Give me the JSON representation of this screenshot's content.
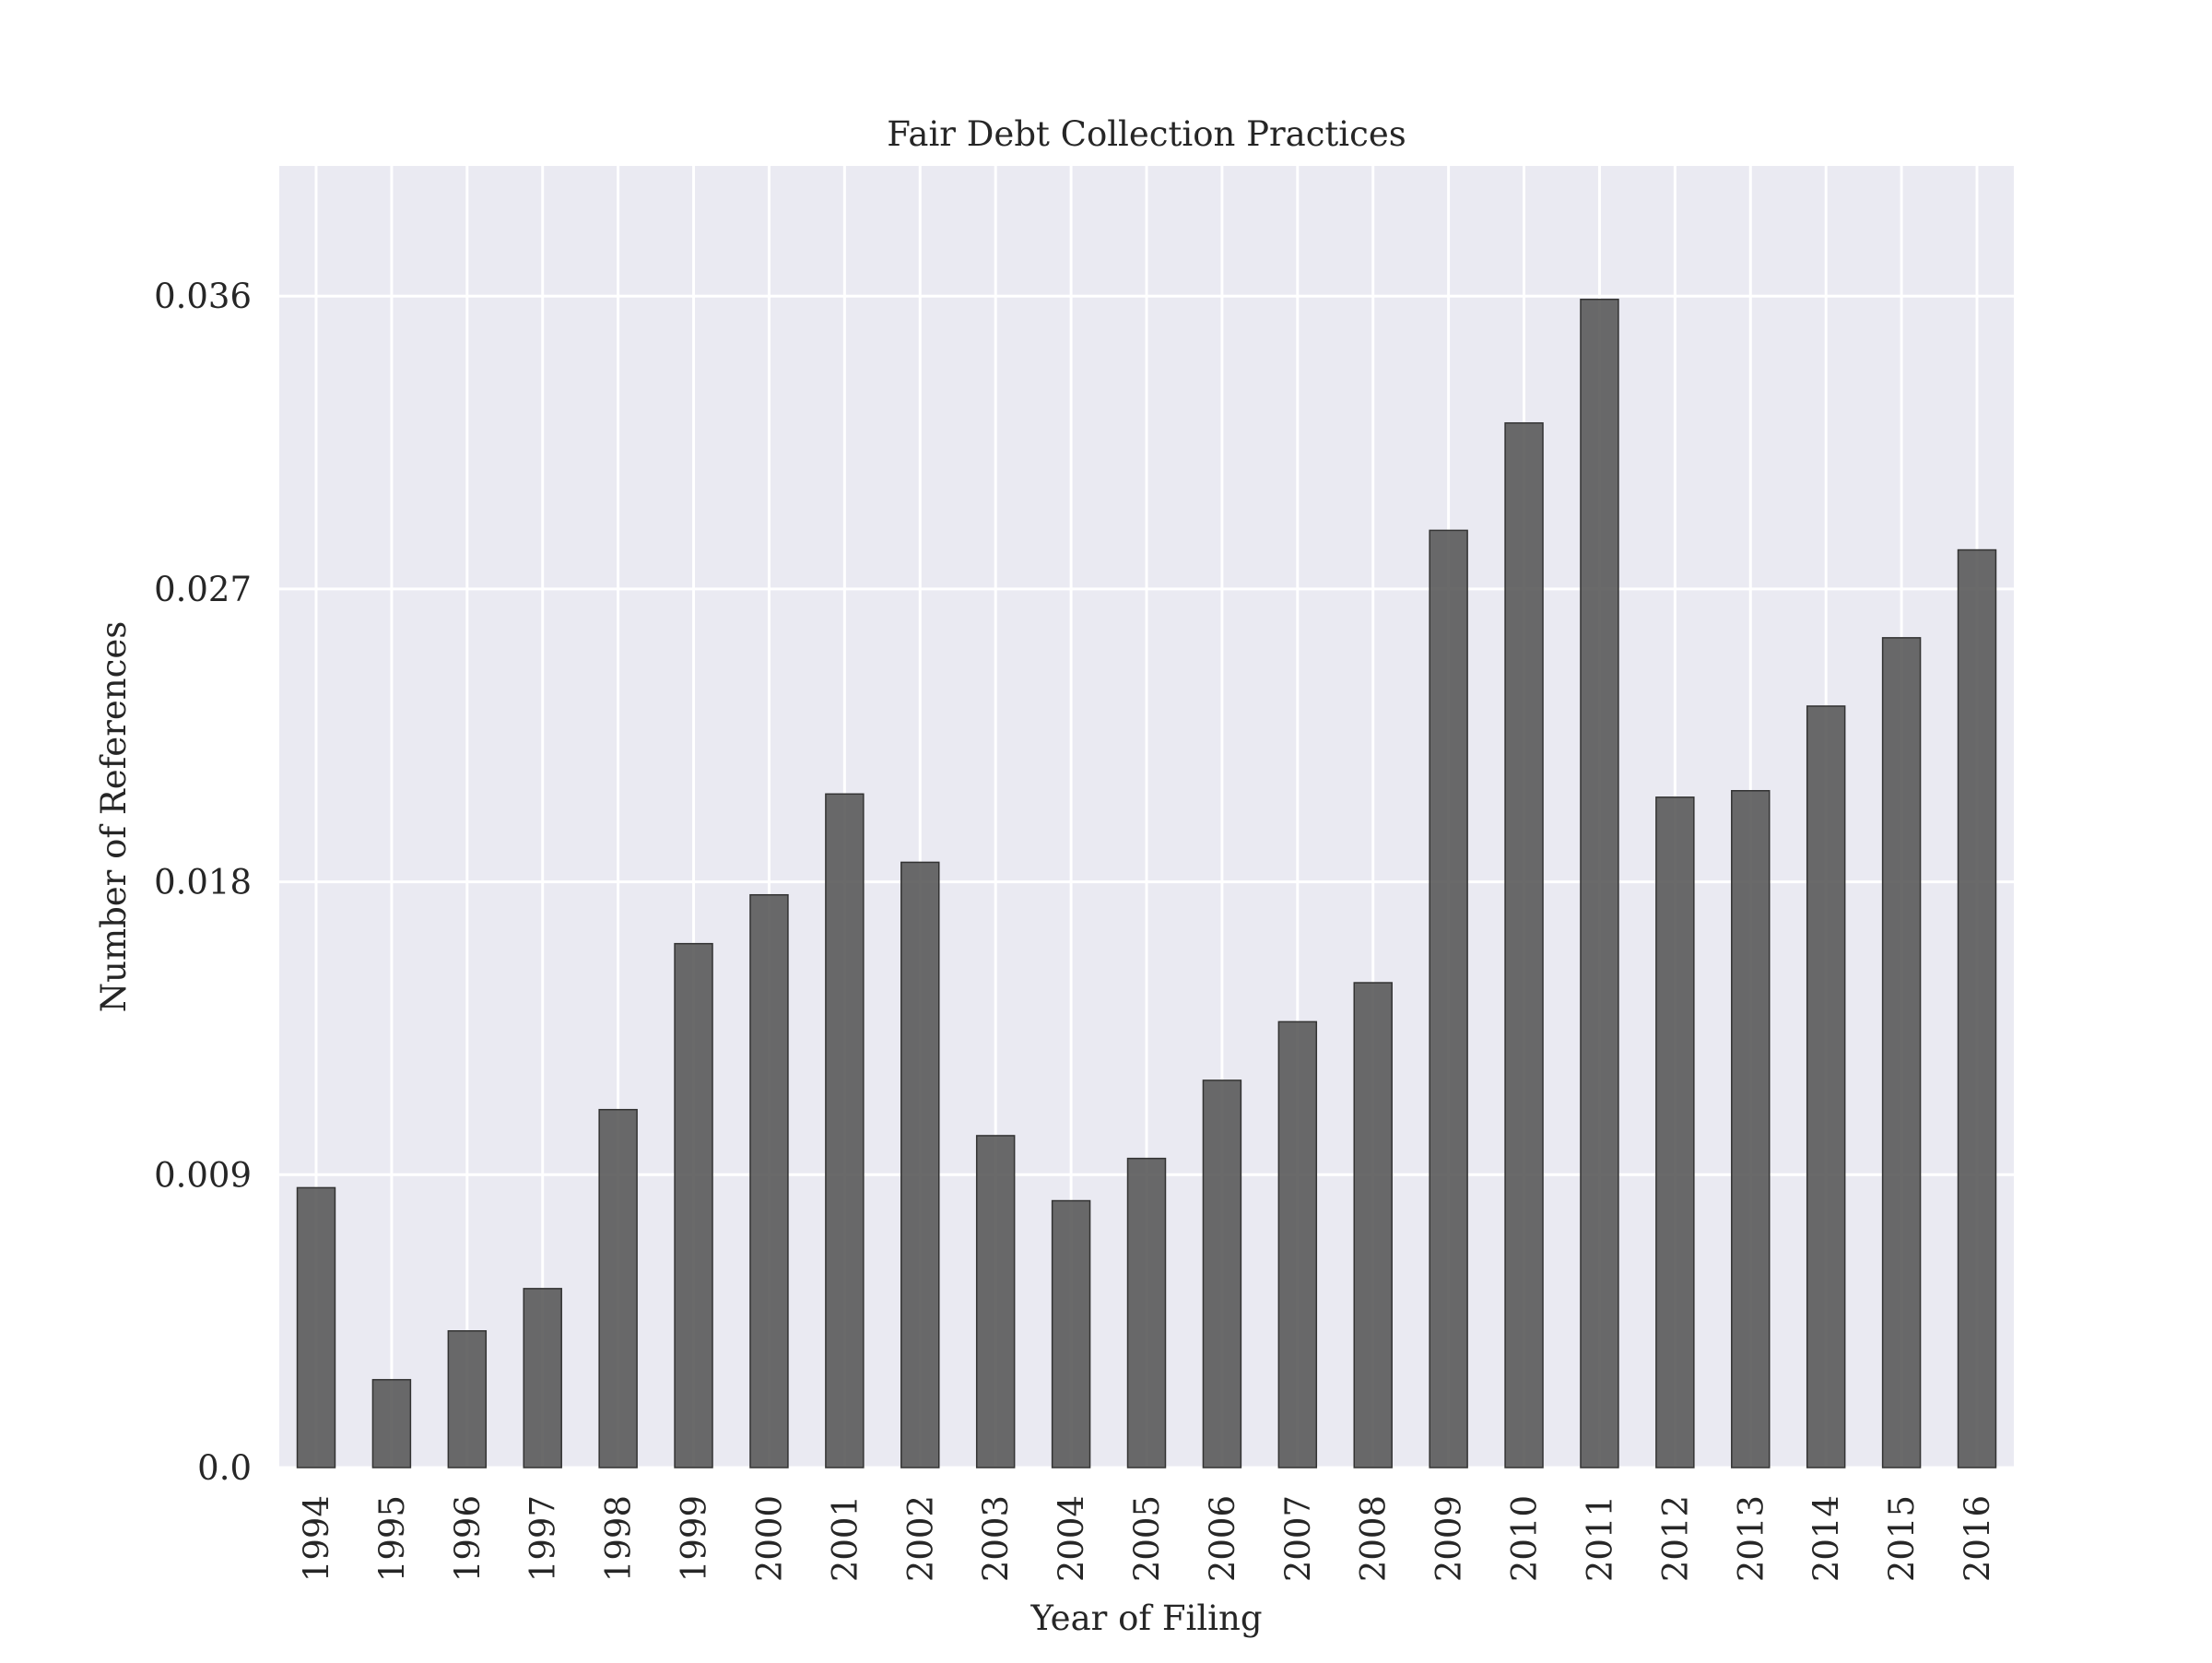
{
  "chart_data": {
    "type": "bar",
    "title": "Fair Debt Collection Practices",
    "xlabel": "Year of Filing",
    "ylabel": "Number of References",
    "categories": [
      "1994",
      "1995",
      "1996",
      "1997",
      "1998",
      "1999",
      "2000",
      "2001",
      "2002",
      "2003",
      "2004",
      "2005",
      "2006",
      "2007",
      "2008",
      "2009",
      "2010",
      "2011",
      "2012",
      "2013",
      "2014",
      "2015",
      "2016"
    ],
    "values": [
      0.0086,
      0.0027,
      0.0042,
      0.0055,
      0.011,
      0.0161,
      0.0176,
      0.0207,
      0.0186,
      0.0102,
      0.0082,
      0.0095,
      0.0119,
      0.0137,
      0.0149,
      0.0288,
      0.0321,
      0.0359,
      0.0206,
      0.0208,
      0.0234,
      0.0255,
      0.0282
    ],
    "yticks": [
      0.0,
      0.009,
      0.018,
      0.027,
      0.036
    ],
    "ytick_labels": [
      "0.0",
      "0.009",
      "0.018",
      "0.027",
      "0.036"
    ],
    "ylim": [
      0,
      0.04
    ],
    "grid": true,
    "legend": "none",
    "colors": {
      "background": "#eaeaf2",
      "grid": "#ffffff",
      "bar_fill": "#5a5a5a",
      "bar_edge": "#333333"
    }
  }
}
